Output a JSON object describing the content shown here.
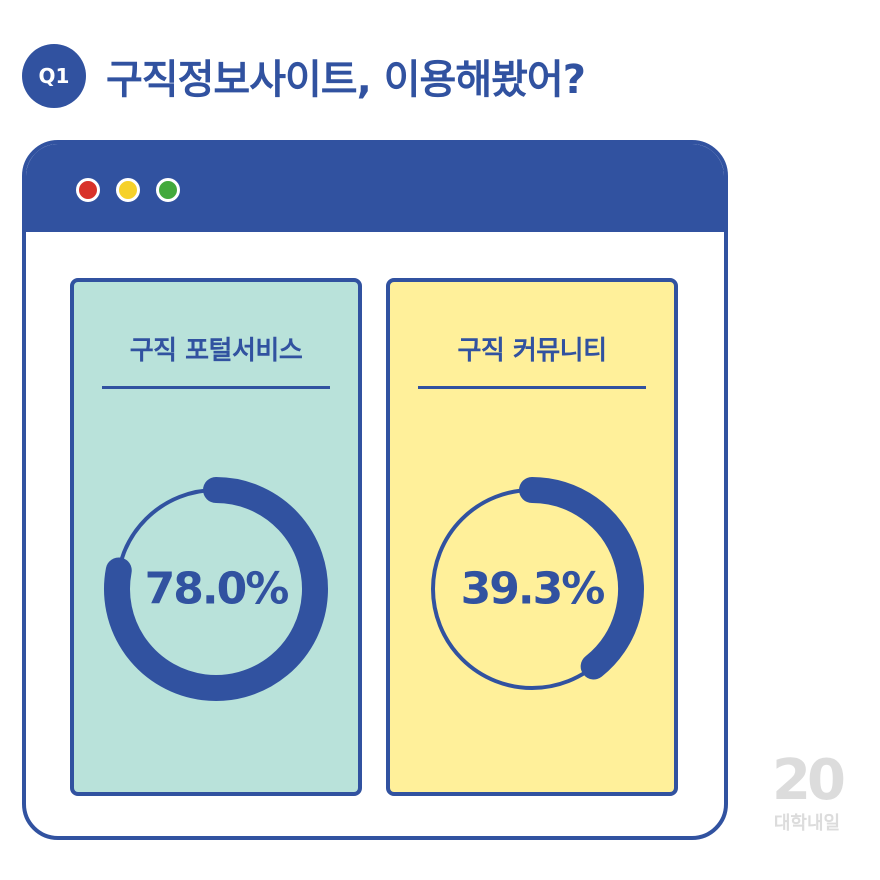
{
  "question": {
    "badge": "Q1",
    "title": "구직정보사이트, 이용해봤어?"
  },
  "window": {
    "dot_colors": [
      "#d8322a",
      "#f6d12a",
      "#43a93c"
    ]
  },
  "colors": {
    "primary": "#3152a0",
    "panel_left_bg": "#b9e2da",
    "panel_right_bg": "#fff09a",
    "brand": "#dcdcdc"
  },
  "chart_data": [
    {
      "type": "donut",
      "title": "구직 포털서비스",
      "value": 78.0,
      "max": 100,
      "label": "78.0%",
      "background": "#b9e2da"
    },
    {
      "type": "donut",
      "title": "구직 커뮤니티",
      "value": 39.3,
      "max": 100,
      "label": "39.3%",
      "background": "#fff09a"
    }
  ],
  "brand": {
    "number": "20",
    "name": "대학내일"
  }
}
